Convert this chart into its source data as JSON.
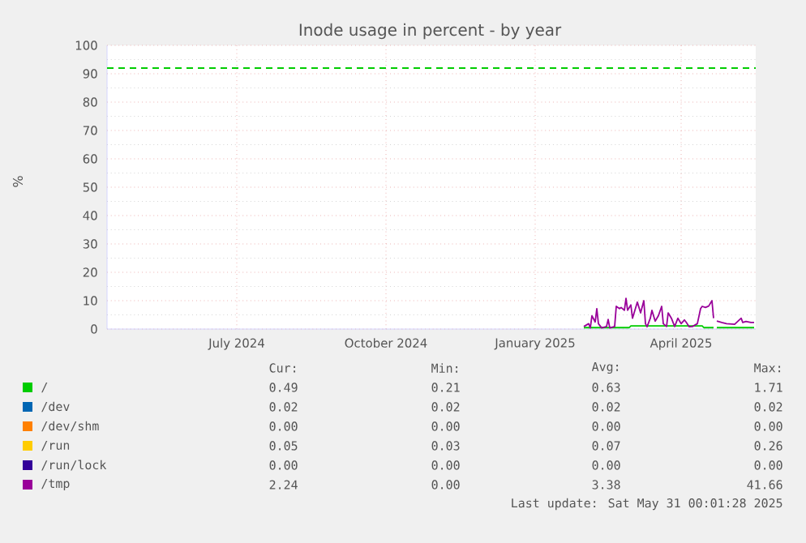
{
  "chart_data": {
    "type": "line",
    "title": "Inode usage in percent - by year",
    "ylabel": "%",
    "xlim": [
      "2024-04-26",
      "2025-05-31"
    ],
    "ylim": [
      0,
      100
    ],
    "xticks": [
      {
        "value": "2024-07-15",
        "label": "July 2024"
      },
      {
        "value": "2024-10-15",
        "label": "October 2024"
      },
      {
        "value": "2025-01-15",
        "label": "January 2025"
      },
      {
        "value": "2025-04-15",
        "label": "April 2025"
      }
    ],
    "yticks": [
      0,
      10,
      20,
      30,
      40,
      50,
      60,
      70,
      80,
      90,
      100
    ],
    "grid": true,
    "legend": "bottom",
    "marker": "none",
    "line_style": "solid",
    "ref_lines": [
      {
        "axis": "y",
        "value": 92,
        "color": "#00cc00",
        "line_style": "dashed"
      }
    ],
    "series": [
      {
        "name": "/",
        "color": "#00cc00",
        "x": [
          "2025-02-14",
          "2025-03-14",
          "2025-03-15",
          "2025-04-28",
          "2025-04-29",
          "2025-05-05",
          "2025-05-06",
          "2025-05-07",
          "2025-05-30"
        ],
        "values": [
          0.5,
          0.5,
          1.1,
          1.1,
          0.5,
          0.5,
          null,
          0.5,
          0.5
        ]
      },
      {
        "name": "/dev",
        "color": "#0066b3"
      },
      {
        "name": "/dev/shm",
        "color": "#ff8000"
      },
      {
        "name": "/run",
        "color": "#ffcc00"
      },
      {
        "name": "/run/lock",
        "color": "#330099"
      },
      {
        "name": "/tmp",
        "color": "#990099",
        "x": [
          "2025-02-14",
          "2025-02-17",
          "2025-02-18",
          "2025-02-19",
          "2025-02-21",
          "2025-02-22",
          "2025-02-23",
          "2025-02-25",
          "2025-02-28",
          "2025-03-01",
          "2025-03-02",
          "2025-03-05",
          "2025-03-06",
          "2025-03-08",
          "2025-03-09",
          "2025-03-11",
          "2025-03-12",
          "2025-03-13",
          "2025-03-15",
          "2025-03-16",
          "2025-03-18",
          "2025-03-19",
          "2025-03-21",
          "2025-03-23",
          "2025-03-24",
          "2025-03-25",
          "2025-03-27",
          "2025-03-28",
          "2025-03-30",
          "2025-04-01",
          "2025-04-03",
          "2025-04-04",
          "2025-04-06",
          "2025-04-07",
          "2025-04-09",
          "2025-04-11",
          "2025-04-13",
          "2025-04-15",
          "2025-04-17",
          "2025-04-18",
          "2025-04-20",
          "2025-04-22",
          "2025-04-25",
          "2025-04-27",
          "2025-04-28",
          "2025-04-30",
          "2025-05-02",
          "2025-05-04",
          "2025-05-05",
          "2025-05-06",
          "2025-05-07",
          "2025-05-10",
          "2025-05-13",
          "2025-05-18",
          "2025-05-22",
          "2025-05-23",
          "2025-05-25",
          "2025-05-28",
          "2025-05-30"
        ],
        "values": [
          0.9,
          1.9,
          0.4,
          4.7,
          2.5,
          7.2,
          1.9,
          0.4,
          0.9,
          3.4,
          0.4,
          0.9,
          8.0,
          7.2,
          7.6,
          6.6,
          10.8,
          6.6,
          8.5,
          3.8,
          7.6,
          9.5,
          5.7,
          10.0,
          1.9,
          0.8,
          3.8,
          6.6,
          2.8,
          4.7,
          8.0,
          1.9,
          0.9,
          5.7,
          3.8,
          0.9,
          3.8,
          1.9,
          3.2,
          2.5,
          0.8,
          0.9,
          1.9,
          7.2,
          8.0,
          7.6,
          8.1,
          10.0,
          3.8,
          null,
          2.8,
          2.3,
          1.9,
          1.7,
          3.8,
          2.3,
          2.7,
          2.3,
          2.3
        ]
      }
    ],
    "annotations": [
      "Cur:",
      "Min:",
      "Avg:",
      "Max:",
      "0.49",
      "0.21",
      "0.63",
      "1.71",
      "0.02",
      "0.02",
      "0.02",
      "0.02",
      "0.00",
      "0.00",
      "0.00",
      "0.00",
      "0.05",
      "0.03",
      "0.07",
      "0.26",
      "0.00",
      "0.00",
      "0.00",
      "0.00",
      "2.24",
      "0.00",
      "3.38",
      "41.66",
      "Last update: Sat May 31 00:01:28 2025"
    ]
  }
}
